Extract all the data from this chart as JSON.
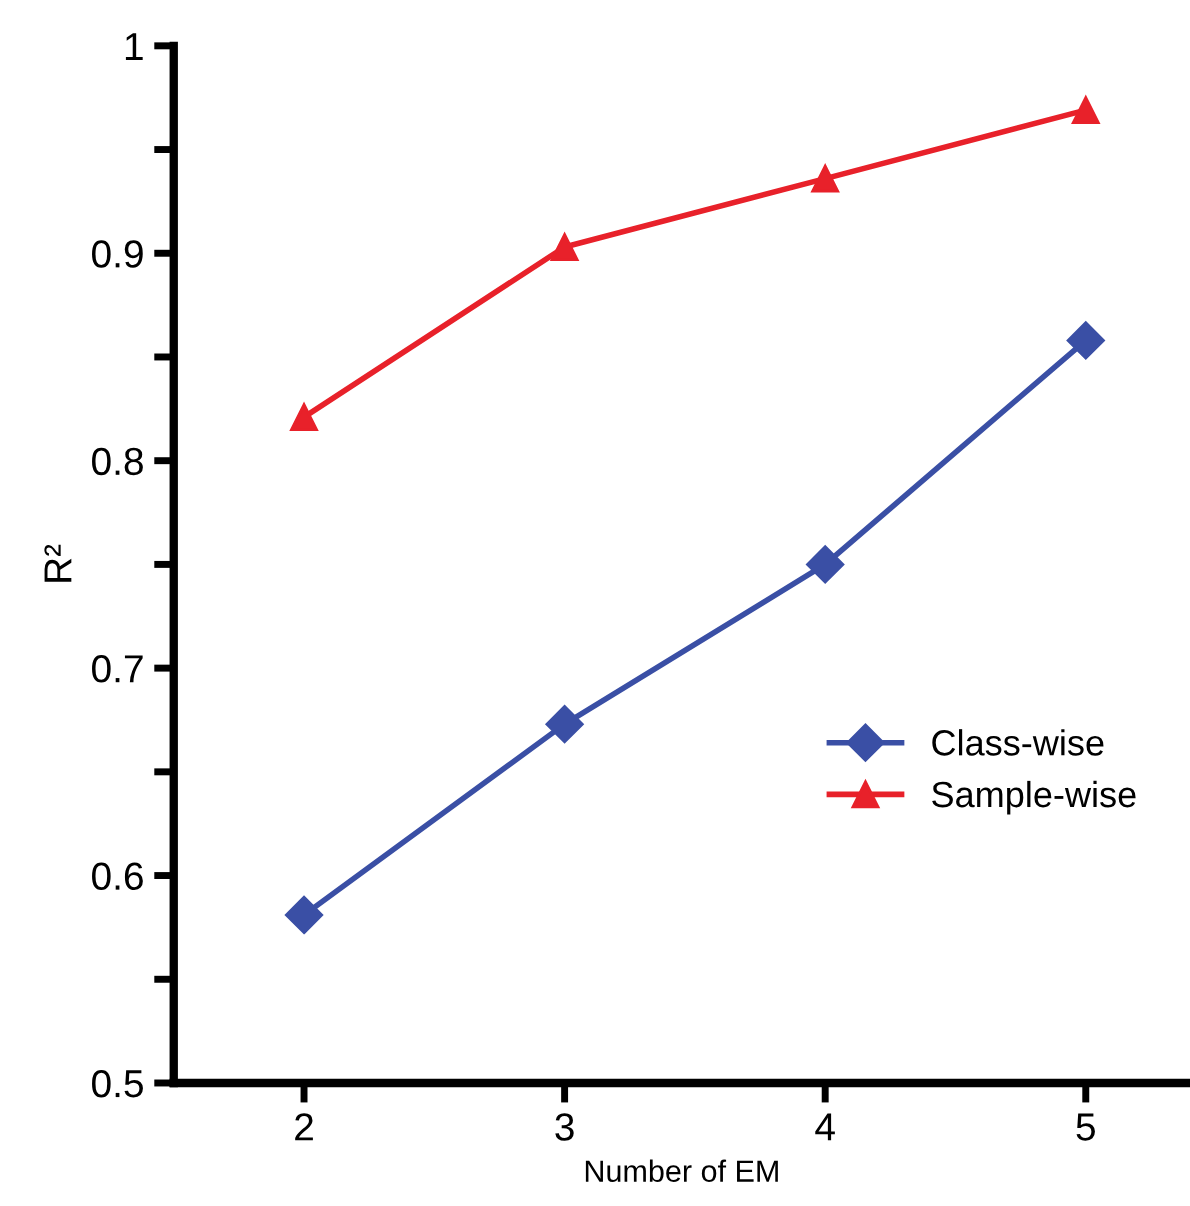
{
  "chart_data": {
    "type": "line",
    "xlabel": "Number of EM",
    "ylabel": "R²",
    "x": [
      2,
      3,
      4,
      5
    ],
    "series": [
      {
        "name": "Class-wise",
        "color": "#3a4fa5",
        "marker": "diamond",
        "values": [
          0.581,
          0.673,
          0.75,
          0.858
        ]
      },
      {
        "name": "Sample-wise",
        "color": "#e8212a",
        "marker": "triangle",
        "values": [
          0.821,
          0.903,
          0.936,
          0.969
        ]
      }
    ],
    "xlim": [
      1.5,
      5.4
    ],
    "xticks": [
      2,
      3,
      4,
      5
    ],
    "ylim": [
      0.5,
      1
    ],
    "yticks": [
      0.5,
      {
        "value": 0.55,
        "label": null
      },
      0.6,
      {
        "value": 0.65,
        "label": null
      },
      0.7,
      {
        "value": 0.75,
        "label": null
      },
      0.8,
      {
        "value": 0.85,
        "label": null
      },
      0.9,
      {
        "value": 0.95,
        "label": null
      },
      1
    ],
    "grid": false,
    "legend": "right",
    "line_style": "solid"
  }
}
